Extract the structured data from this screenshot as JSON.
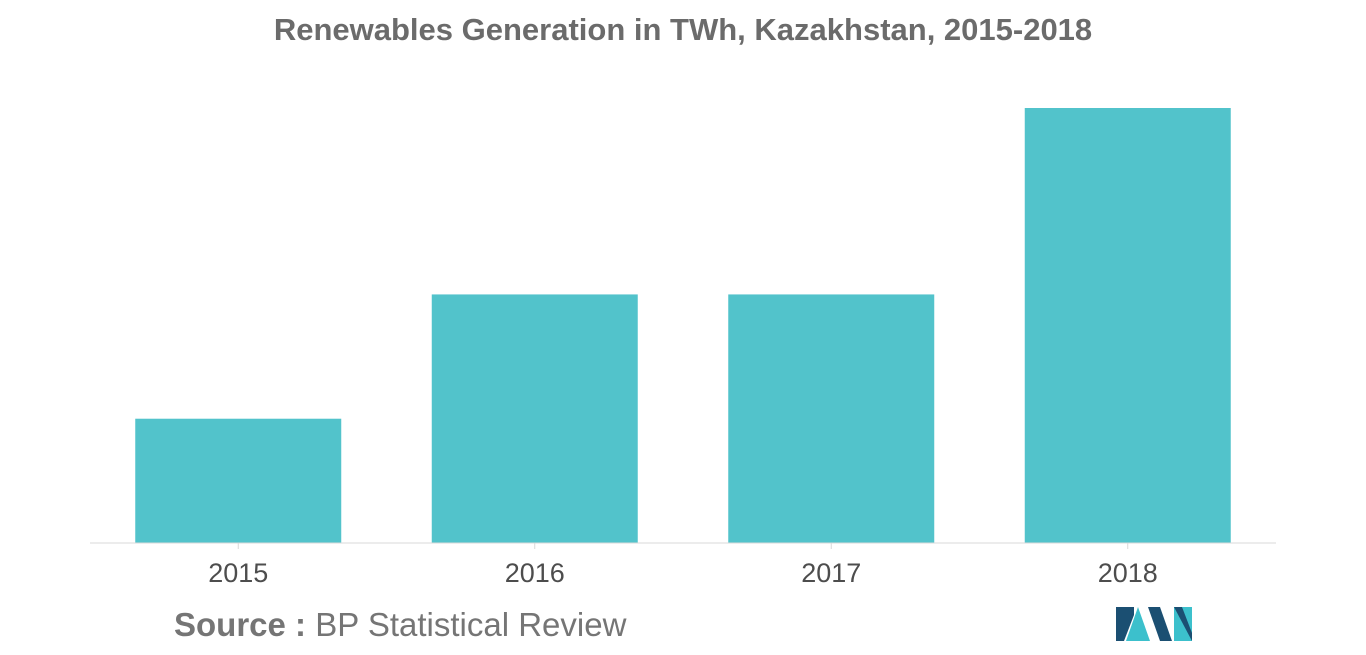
{
  "chart_data": {
    "type": "bar",
    "title": "Renewables Generation in TWh, Kazakhstan, 2015-2018",
    "categories": [
      "2015",
      "2016",
      "2017",
      "2018"
    ],
    "values": [
      0.5,
      1.0,
      1.0,
      1.75
    ],
    "xlabel": "",
    "ylabel": "",
    "ylim": [
      0,
      1.75
    ],
    "grid": false,
    "legend": "none",
    "bar_color": "#52C3CB",
    "axis_color": "#d9d9d9"
  },
  "source": {
    "label": "Source :",
    "text": "BP Statistical Review"
  },
  "logo": {
    "icon": "mordor-intelligence-logo",
    "colors": [
      "#1b4f72",
      "#3cc0cc"
    ]
  }
}
